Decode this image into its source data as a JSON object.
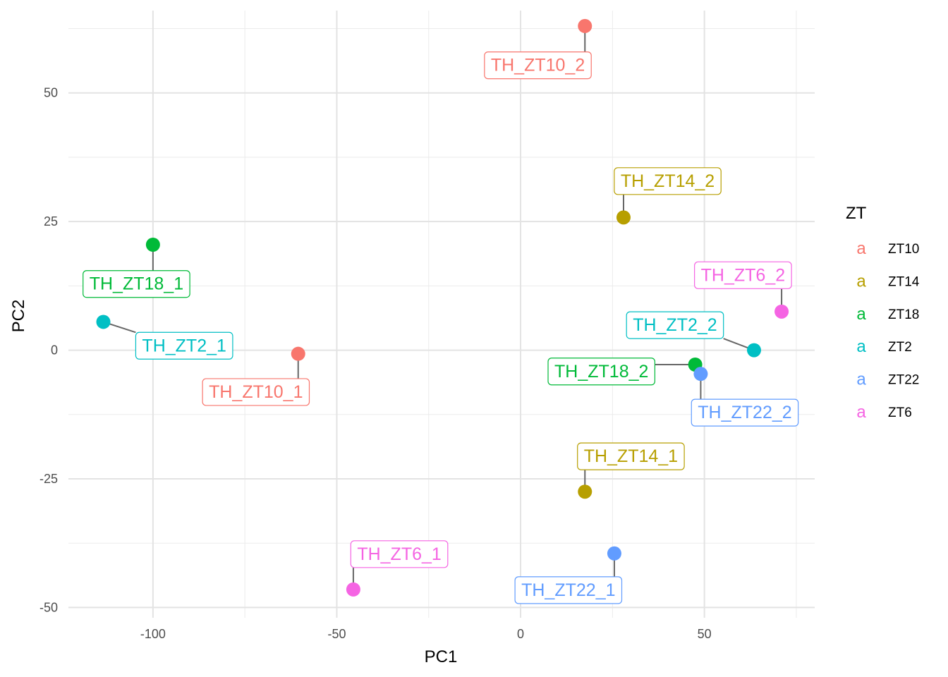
{
  "chart_data": {
    "type": "scatter",
    "xlabel": "PC1",
    "ylabel": "PC2",
    "xlim": [
      -123,
      80
    ],
    "ylim": [
      -52,
      66
    ],
    "x_ticks": [
      -100,
      -50,
      0,
      50
    ],
    "y_ticks": [
      50,
      25,
      0,
      -25,
      -50
    ],
    "grid": true,
    "legend": {
      "title": "ZT",
      "placement": "right",
      "key_glyph": "a",
      "entries": [
        {
          "name": "ZT10",
          "color": "#F8766D"
        },
        {
          "name": "ZT14",
          "color": "#B79F00"
        },
        {
          "name": "ZT18",
          "color": "#00BA38"
        },
        {
          "name": "ZT2",
          "color": "#00BFC4"
        },
        {
          "name": "ZT22",
          "color": "#619CFF"
        },
        {
          "name": "ZT6",
          "color": "#F564E3"
        }
      ]
    },
    "points": [
      {
        "label": "TH_ZT10_2",
        "group": "ZT10",
        "x": 17.5,
        "y": 63.0,
        "lx": 4.7,
        "ly": 55.5
      },
      {
        "label": "TH_ZT14_2",
        "group": "ZT14",
        "x": 28.0,
        "y": 25.8,
        "lx": 40.0,
        "ly": 33.0
      },
      {
        "label": "TH_ZT18_1",
        "group": "ZT18",
        "x": -100.0,
        "y": 20.5,
        "lx": -104.5,
        "ly": 13.0
      },
      {
        "label": "TH_ZT6_2",
        "group": "ZT6",
        "x": 71.0,
        "y": 7.5,
        "lx": 60.5,
        "ly": 14.7
      },
      {
        "label": "TH_ZT2_1",
        "group": "ZT2",
        "x": -113.5,
        "y": 5.5,
        "lx": -91.5,
        "ly": 1.0
      },
      {
        "label": "TH_ZT2_2",
        "group": "ZT2",
        "x": 63.5,
        "y": 0.0,
        "lx": 42.0,
        "ly": 5.0
      },
      {
        "label": "TH_ZT10_1",
        "group": "ZT10",
        "x": -60.5,
        "y": -0.7,
        "lx": -72.0,
        "ly": -8.0
      },
      {
        "label": "TH_ZT18_2",
        "group": "ZT18",
        "x": 47.5,
        "y": -2.8,
        "lx": 22.0,
        "ly": -4.0
      },
      {
        "label": "TH_ZT22_2",
        "group": "ZT22",
        "x": 49.0,
        "y": -4.6,
        "lx": 61.0,
        "ly": -12.0
      },
      {
        "label": "TH_ZT14_1",
        "group": "ZT14",
        "x": 17.5,
        "y": -27.5,
        "lx": 30.0,
        "ly": -20.5
      },
      {
        "label": "TH_ZT22_1",
        "group": "ZT22",
        "x": 25.5,
        "y": -39.5,
        "lx": 13.0,
        "ly": -46.5
      },
      {
        "label": "TH_ZT6_1",
        "group": "ZT6",
        "x": -45.5,
        "y": -46.5,
        "lx": -33.0,
        "ly": -39.5
      }
    ]
  }
}
